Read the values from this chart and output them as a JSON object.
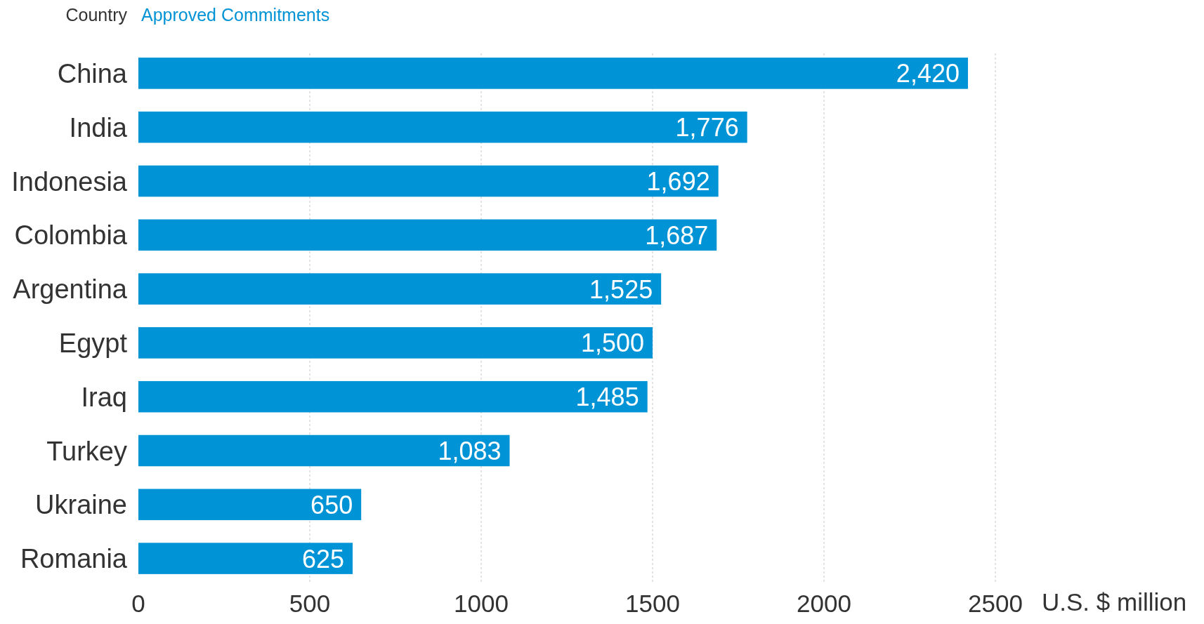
{
  "chart_data": {
    "type": "bar",
    "orientation": "horizontal",
    "ylabel": "Country",
    "xlabel": "U.S. $ million",
    "categories": [
      "China",
      "India",
      "Indonesia",
      "Colombia",
      "Argentina",
      "Egypt",
      "Iraq",
      "Turkey",
      "Ukraine",
      "Romania"
    ],
    "series": [
      {
        "name": "Approved Commitments",
        "color": "#0093d5",
        "values": [
          2420,
          1776,
          1692,
          1687,
          1525,
          1500,
          1485,
          1083,
          650,
          625
        ],
        "value_labels": [
          "2,420",
          "1,776",
          "1,692",
          "1,687",
          "1,525",
          "1,500",
          "1,485",
          "1,083",
          "650",
          "625"
        ]
      }
    ],
    "xlim": [
      0,
      2500
    ],
    "xticks": [
      0,
      500,
      1000,
      1500,
      2000,
      2500
    ],
    "grid": "x",
    "legend": "top left"
  }
}
